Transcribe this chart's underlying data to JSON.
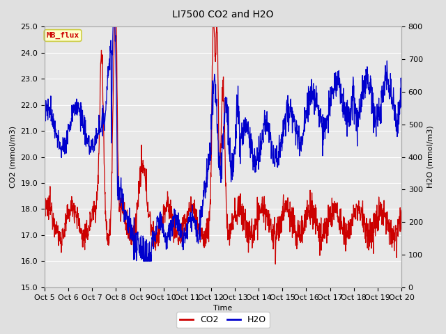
{
  "title": "LI7500 CO2 and H2O",
  "xlabel": "Time",
  "ylabel_left": "CO2 (mmol/m3)",
  "ylabel_right": "H2O (mmol/m3)",
  "ylim_left": [
    15.0,
    25.0
  ],
  "ylim_right": [
    0,
    800
  ],
  "yticks_left": [
    15.0,
    16.0,
    17.0,
    18.0,
    19.0,
    20.0,
    21.0,
    22.0,
    23.0,
    24.0,
    25.0
  ],
  "yticks_right": [
    0,
    100,
    200,
    300,
    400,
    500,
    600,
    700,
    800
  ],
  "xtick_labels": [
    "Oct 5",
    "Oct 6",
    "Oct 7",
    "Oct 8",
    "Oct 9",
    "Oct 10",
    "Oct 11",
    "Oct 12",
    "Oct 13",
    "Oct 14",
    "Oct 15",
    "Oct 16",
    "Oct 17",
    "Oct 18",
    "Oct 19",
    "Oct 20"
  ],
  "co2_color": "#cc0000",
  "h2o_color": "#0000cc",
  "bg_color": "#e0e0e0",
  "plot_bg_color": "#e8e8e8",
  "grid_color": "#ffffff",
  "annotation_text": "MB_flux",
  "annotation_bg": "#ffffcc",
  "annotation_border": "#cccc44",
  "legend_co2": "CO2",
  "legend_h2o": "H2O",
  "title_fontsize": 10,
  "axis_fontsize": 8,
  "tick_fontsize": 8,
  "linewidth": 0.9
}
